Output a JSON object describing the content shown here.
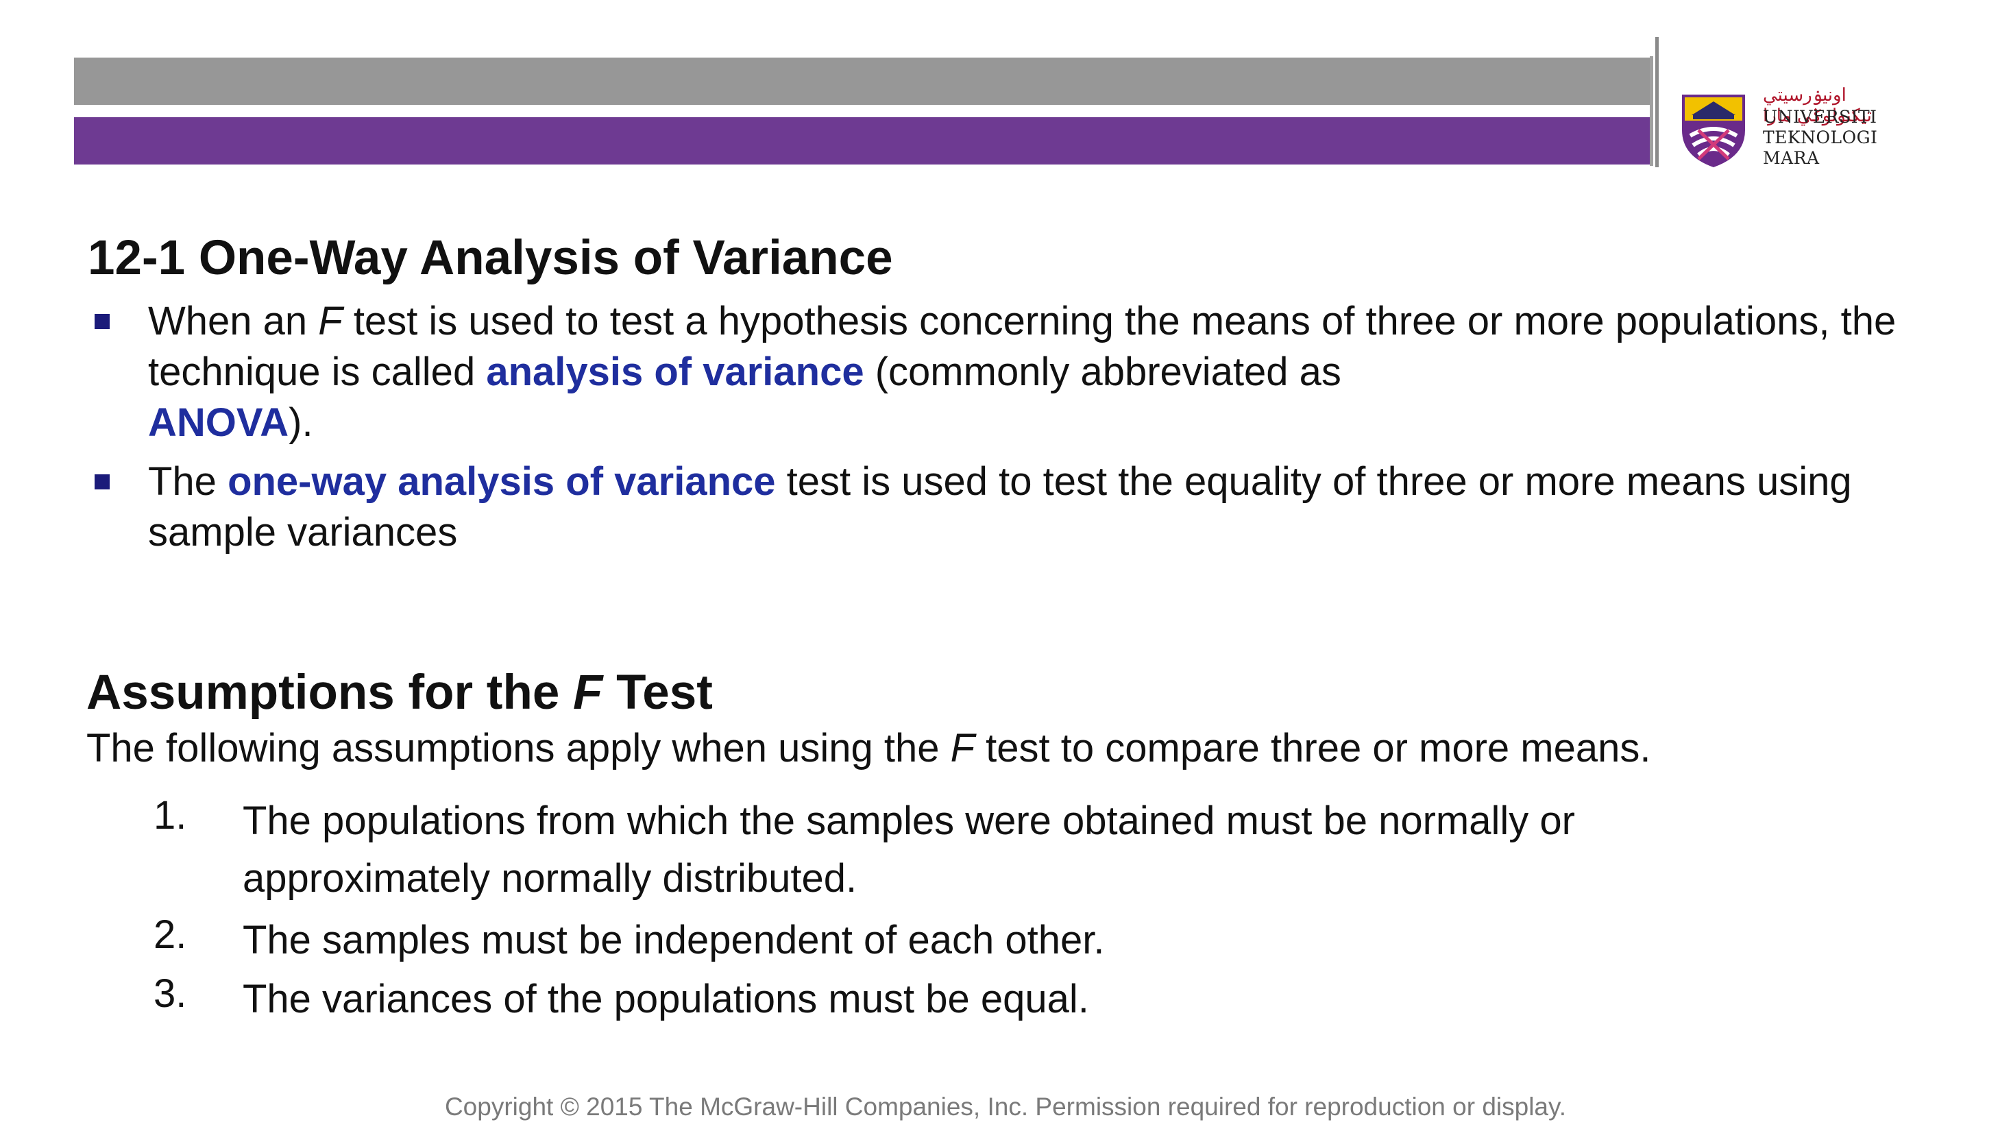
{
  "header": {
    "logo": {
      "jawi_text": "اونيۏرسيتي تيكنولوݢي مارا",
      "line1": "UNIVERSITI",
      "line2": "TEKNOLOGI",
      "line3": "MARA"
    }
  },
  "section1": {
    "title": "12-1 One-Way Analysis of Variance",
    "bullet1": {
      "part1": "When an ",
      "F": "F",
      "part2": " test is used to test a hypothesis concerning the means of three or more populations, the technique  is called ",
      "highlight1": "analysis of variance",
      "part3": " (commonly abbreviated as ",
      "highlight2": "ANOVA",
      "part4": ")."
    },
    "bullet2": {
      "part1": "The ",
      "highlight": "one-way analysis of variance",
      "part2": " test is used to test the equality of three or more means using sample  variances"
    }
  },
  "section2": {
    "title_part1": "Assumptions for the ",
    "title_F": "F",
    "title_part2": " Test",
    "intro_part1": "The following assumptions apply when using the ",
    "intro_F": "F",
    "intro_part2": " test to compare three or more means.",
    "items": [
      {
        "num": "1.",
        "text": "The populations from which the samples were obtained must be normally or approximately  normally distributed."
      },
      {
        "num": "2.",
        "text": "The samples must be independent of each other."
      },
      {
        "num": "3.",
        "text": "The variances of the populations must be equal."
      }
    ]
  },
  "footer": {
    "copyright": "Copyright © 2015 The McGraw-Hill Companies, Inc. Permission required for reproduction or display."
  },
  "colors": {
    "gray_bar": "#979797",
    "purple_bar": "#6e3a92",
    "highlight_blue": "#1f2e9e",
    "bullet_navy": "#1b1b7a"
  }
}
